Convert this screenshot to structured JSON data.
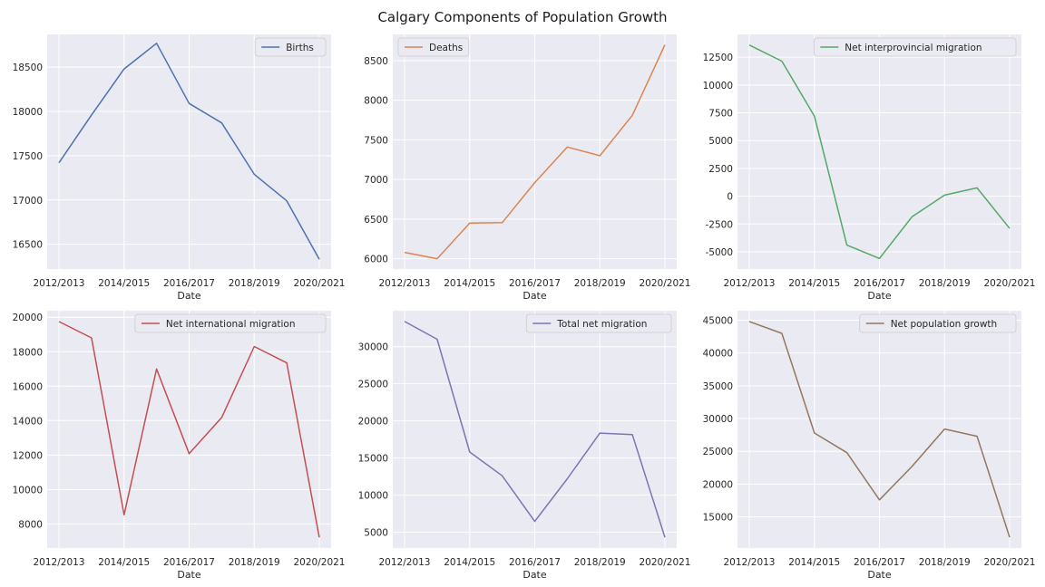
{
  "chart_data": {
    "title": "Calgary Components of Population Growth",
    "type": "line",
    "grid": true,
    "legend_placement": "upper right",
    "x": [
      "2012/2013",
      "2013/2014",
      "2014/2015",
      "2015/2016",
      "2016/2017",
      "2017/2018",
      "2018/2019",
      "2019/2020",
      "2020/2021"
    ],
    "xticks": [
      "2012/2013",
      "2014/2015",
      "2016/2017",
      "2018/2019",
      "2020/2021"
    ],
    "xlabel": "Date",
    "panels": [
      {
        "series": {
          "name": "Births",
          "color": "#4c72b0",
          "values": [
            17420,
            17960,
            18480,
            18770,
            18090,
            17870,
            17290,
            16990,
            16330
          ]
        },
        "yticks": [
          16500,
          17000,
          17500,
          18000,
          18500
        ],
        "ylim": [
          16220,
          18870
        ],
        "legend_placement": "upper right"
      },
      {
        "series": {
          "name": "Deaths",
          "color": "#dd8452",
          "values": [
            6080,
            6000,
            6450,
            6455,
            6960,
            7410,
            7300,
            7810,
            8700
          ]
        },
        "yticks": [
          6000,
          6500,
          7000,
          7500,
          8000,
          8500
        ],
        "ylim": [
          5870,
          8830
        ],
        "legend_placement": "upper left"
      },
      {
        "series": {
          "name": "Net interprovincial migration",
          "color": "#55a868",
          "values": [
            13600,
            12150,
            7200,
            -4400,
            -5600,
            -1850,
            100,
            750,
            -2900
          ]
        },
        "yticks": [
          -5000,
          -2500,
          0,
          2500,
          5000,
          7500,
          10000,
          12500
        ],
        "ylim": [
          -6550,
          14550
        ],
        "legend_placement": "upper right"
      },
      {
        "series": {
          "name": "Net international migration",
          "color": "#c44e52",
          "values": [
            19750,
            18800,
            8530,
            17000,
            12080,
            14180,
            18300,
            17350,
            7220
          ]
        },
        "yticks": [
          8000,
          10000,
          12000,
          14000,
          16000,
          18000,
          20000
        ],
        "ylim": [
          6600,
          20380
        ],
        "legend_placement": "upper right"
      },
      {
        "series": {
          "name": "Total net migration",
          "color": "#8172b3",
          "values": [
            33400,
            31000,
            15800,
            12600,
            6450,
            12200,
            18350,
            18150,
            4300
          ]
        },
        "yticks": [
          5000,
          10000,
          15000,
          20000,
          25000,
          30000
        ],
        "ylim": [
          2860,
          34850
        ],
        "legend_placement": "upper right"
      },
      {
        "series": {
          "name": "Net population growth",
          "color": "#937860",
          "values": [
            44800,
            43000,
            27800,
            24800,
            17600,
            22700,
            28400,
            27300,
            11900
          ]
        },
        "yticks": [
          15000,
          20000,
          25000,
          30000,
          35000,
          40000,
          45000
        ],
        "ylim": [
          10250,
          46450
        ],
        "legend_placement": "upper right"
      }
    ]
  }
}
